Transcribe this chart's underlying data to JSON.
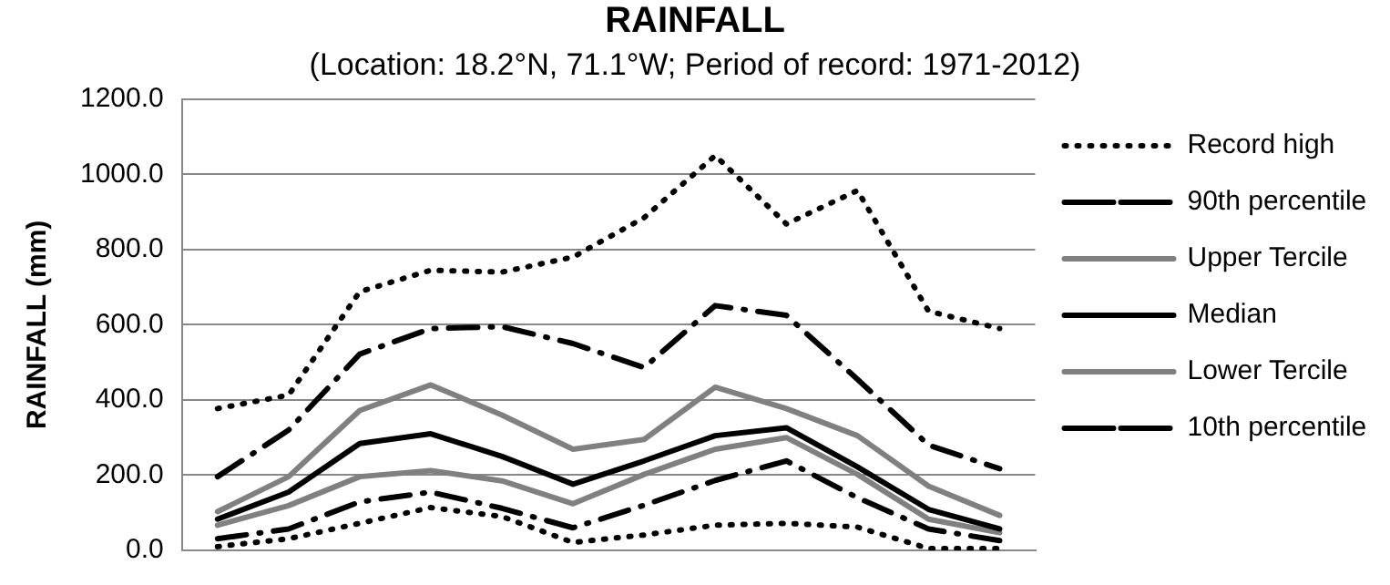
{
  "chart_data": {
    "type": "line",
    "title": "RAINFALL",
    "subtitle": "(Location: 18.2°N, 71.1°W; Period of record: 1971-2012)",
    "ylabel": "RAINFALL (mm)",
    "categories": [
      null,
      null,
      null,
      null,
      null,
      null,
      null,
      null,
      null,
      null,
      null,
      null
    ],
    "ylim": [
      0,
      1200
    ],
    "yticks": [
      {
        "value": 0,
        "label": "0.0"
      },
      {
        "value": 200,
        "label": "200.0"
      },
      {
        "value": 400,
        "label": "400.0"
      },
      {
        "value": 600,
        "label": "600.0"
      },
      {
        "value": 800,
        "label": "800.0"
      },
      {
        "value": 1000,
        "label": "1000.0"
      },
      {
        "value": 1200,
        "label": "1200.0"
      }
    ],
    "grid": "y",
    "legend": "right",
    "marker": "none",
    "tick_labels": "y",
    "series": [
      {
        "name": "Record high",
        "color": "#000000",
        "line_style": "dotted",
        "values": [
          377,
          413,
          688,
          745,
          740,
          780,
          885,
          1050,
          868,
          957,
          636,
          590
        ]
      },
      {
        "name": "90th percentile",
        "color": "#000000",
        "line_style": "dashdot",
        "values": [
          196,
          320,
          522,
          590,
          595,
          550,
          486,
          651,
          625,
          455,
          280,
          217
        ]
      },
      {
        "name": "Upper Tercile",
        "color": "#808080",
        "line_style": "solid",
        "values": [
          103,
          196,
          372,
          440,
          360,
          269,
          295,
          434,
          377,
          305,
          171,
          93
        ]
      },
      {
        "name": "Median",
        "color": "#000000",
        "line_style": "solid",
        "values": [
          83,
          155,
          284,
          310,
          250,
          176,
          238,
          305,
          326,
          222,
          109,
          57
        ]
      },
      {
        "name": "Lower Tercile",
        "color": "#808080",
        "line_style": "solid",
        "values": [
          67,
          119,
          196,
          212,
          185,
          124,
          202,
          269,
          300,
          202,
          83,
          47
        ]
      },
      {
        "name": "10th percentile",
        "color": "#000000",
        "line_style": "dashdot",
        "values": [
          31,
          57,
          129,
          155,
          112,
          60,
          120,
          186,
          238,
          140,
          57,
          26
        ]
      },
      {
        "color": "#000000",
        "line_style": "dotted",
        "values": [
          10,
          31,
          72,
          114,
          90,
          21,
          41,
          67,
          72,
          62,
          5,
          5
        ]
      }
    ]
  }
}
